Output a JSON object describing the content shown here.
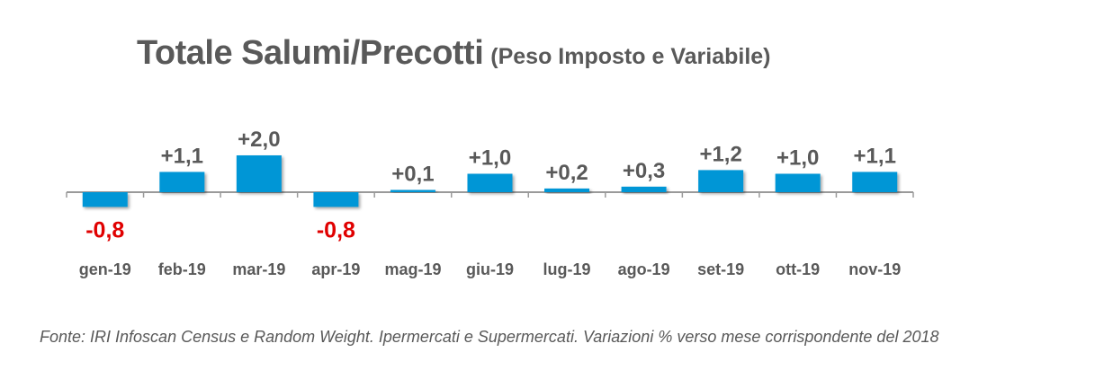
{
  "title": {
    "main": "Totale Salumi/Precotti",
    "sub": "(Peso Imposto e Variabile)"
  },
  "source": "Fonte: IRI Infoscan Census e Random Weight. Ipermercati e Supermercati. Variazioni % verso mese corrispondente del 2018",
  "colors": {
    "bar": "#0096d6",
    "positive_label": "#595959",
    "negative_label": "#e00000",
    "axis": "#9a9a9a",
    "category_label": "#595959"
  },
  "chart_data": {
    "type": "bar",
    "categories": [
      "gen-19",
      "feb-19",
      "mar-19",
      "apr-19",
      "mag-19",
      "giu-19",
      "lug-19",
      "ago-19",
      "set-19",
      "ott-19",
      "nov-19"
    ],
    "values": [
      -0.8,
      1.1,
      2.0,
      -0.8,
      0.1,
      1.0,
      0.2,
      0.3,
      1.2,
      1.0,
      1.1
    ],
    "labels": [
      "-0,8",
      "+1,1",
      "+2,0",
      "-0,8",
      "+0,1",
      "+1,0",
      "+0,2",
      "+0,3",
      "+1,2",
      "+1,0",
      "+1,1"
    ],
    "title": "Totale Salumi/Precotti",
    "xlabel": "",
    "ylabel": "",
    "grid": false,
    "legend": "none"
  }
}
